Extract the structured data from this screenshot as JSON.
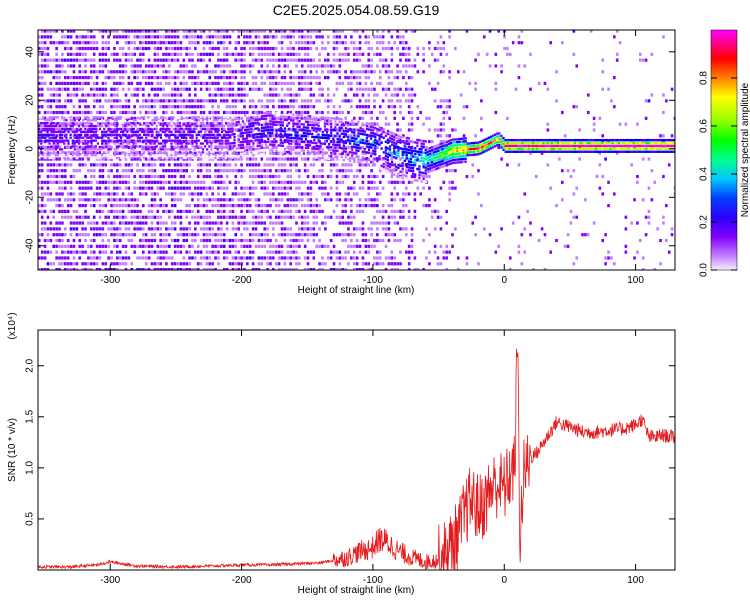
{
  "figure": {
    "title": "C2E5.2025.054.08.59.G19"
  },
  "chart_data": [
    {
      "type": "heatmap",
      "xlabel": "Height of straight line (km)",
      "ylabel": "Frequency (Hz)",
      "xlim": [
        -355,
        130
      ],
      "ylim": [
        -50,
        49
      ],
      "x_ticks": [
        -300,
        -200,
        -100,
        0,
        100
      ],
      "y_ticks": [
        -40,
        -20,
        0,
        20,
        40
      ],
      "x_tick_labels": [
        "-300",
        "-200",
        "-100",
        "0",
        "100"
      ],
      "y_tick_labels": [
        "-40",
        "-20",
        "0",
        "20",
        "40"
      ],
      "colorbar": {
        "label": "Normalized spectral amplitude",
        "range": [
          0,
          1
        ],
        "ticks": [
          0.0,
          0.2,
          0.4,
          0.6,
          0.8
        ],
        "tick_labels": [
          "0.0",
          "0.2",
          "0.4",
          "0.6",
          "0.8"
        ],
        "colormap": [
          "#f2e6ff",
          "#c27bff",
          "#7f00ff",
          "#3a00ff",
          "#0000ff",
          "#00c8ff",
          "#00ff80",
          "#00ff00",
          "#b0ff00",
          "#ffff00",
          "#ff8000",
          "#ff0000",
          "#ff0080",
          "#ff00ff"
        ]
      },
      "ridge": [
        {
          "x": -320,
          "f": 5,
          "amp": 0.22
        },
        {
          "x": -300,
          "f": 5,
          "amp": 0.2
        },
        {
          "x": -210,
          "f": 5,
          "amp": 0.2
        },
        {
          "x": -180,
          "f": 7,
          "amp": 0.28
        },
        {
          "x": -160,
          "f": 6,
          "amp": 0.3
        },
        {
          "x": -140,
          "f": 5,
          "amp": 0.3
        },
        {
          "x": -120,
          "f": 4,
          "amp": 0.32
        },
        {
          "x": -100,
          "f": 2,
          "amp": 0.35
        },
        {
          "x": -80,
          "f": -3,
          "amp": 0.38
        },
        {
          "x": -60,
          "f": -5,
          "amp": 0.45
        },
        {
          "x": -40,
          "f": -1,
          "amp": 0.7
        },
        {
          "x": -20,
          "f": 0,
          "amp": 0.85
        },
        {
          "x": -5,
          "f": 4,
          "amp": 0.7
        },
        {
          "x": 0,
          "f": 1,
          "amp": 0.9
        },
        {
          "x": 40,
          "f": 1,
          "amp": 0.95
        },
        {
          "x": 80,
          "f": 1,
          "amp": 0.97
        },
        {
          "x": 130,
          "f": 1,
          "amp": 0.97
        }
      ]
    },
    {
      "type": "line",
      "xlabel": "Height of straight line (km)",
      "ylabel": "SNR (10 * v/v)",
      "y_scale_label": "(x10⁴)",
      "xlim": [
        -355,
        130
      ],
      "ylim": [
        0,
        2.35
      ],
      "x_ticks": [
        -300,
        -200,
        -100,
        0,
        100
      ],
      "y_ticks": [
        0.5,
        1.0,
        1.5,
        2.0
      ],
      "x_tick_labels": [
        "-300",
        "-200",
        "-100",
        "0",
        "100"
      ],
      "y_tick_labels": [
        "0.5",
        "1.0",
        "1.5",
        "2.0"
      ],
      "series": [
        {
          "color": "#e41a1c",
          "x": [
            -355,
            -330,
            -310,
            -300,
            -280,
            -250,
            -220,
            -200,
            -180,
            -160,
            -140,
            -120,
            -110,
            -100,
            -95,
            -90,
            -80,
            -70,
            -60,
            -50,
            -45,
            -40,
            -35,
            -30,
            -25,
            -20,
            -15,
            -10,
            -5,
            0,
            5,
            8,
            10,
            12,
            15,
            20,
            25,
            30,
            35,
            40,
            45,
            50,
            60,
            70,
            80,
            90,
            100,
            105,
            110,
            115,
            120,
            130
          ],
          "y": [
            0.03,
            0.03,
            0.05,
            0.08,
            0.04,
            0.03,
            0.04,
            0.05,
            0.05,
            0.06,
            0.07,
            0.12,
            0.18,
            0.22,
            0.3,
            0.28,
            0.18,
            0.12,
            0.08,
            0.1,
            0.15,
            0.25,
            0.35,
            0.55,
            0.7,
            0.6,
            0.65,
            0.8,
            0.85,
            0.8,
            0.95,
            1.0,
            2.3,
            0.3,
            0.95,
            1.1,
            1.15,
            1.25,
            1.35,
            1.45,
            1.42,
            1.4,
            1.35,
            1.35,
            1.37,
            1.38,
            1.42,
            1.48,
            1.3,
            1.3,
            1.32,
            1.3
          ]
        }
      ]
    }
  ]
}
